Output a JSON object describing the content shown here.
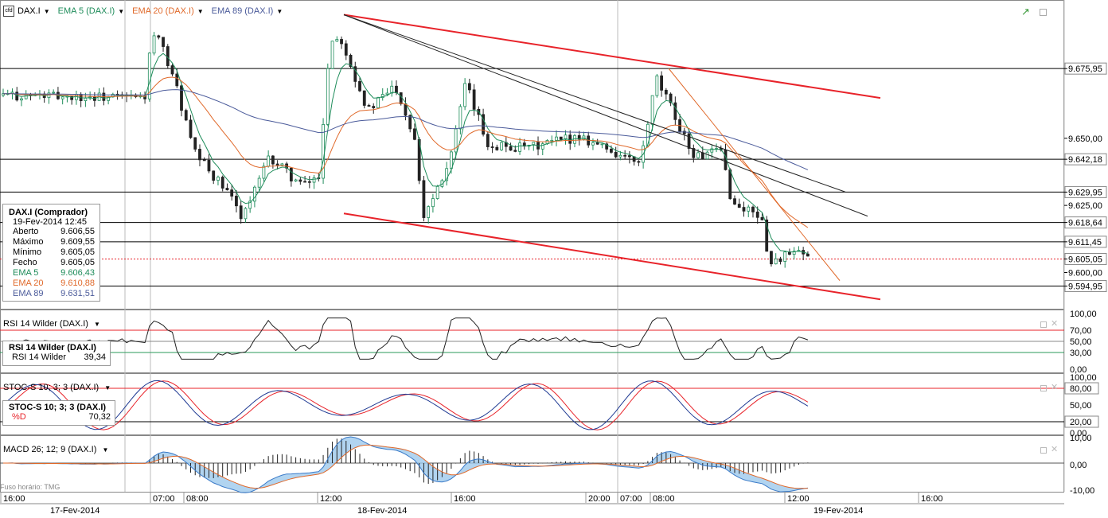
{
  "toolbar": {
    "instrument": "DAX.I",
    "indicators": [
      {
        "label": "EMA 5 (DAX.I)",
        "color": "#1e8c5a"
      },
      {
        "label": "EMA 20 (DAX.I)",
        "color": "#e0692a"
      },
      {
        "label": "EMA 89 (DAX.I)",
        "color": "#4a5a9a"
      }
    ]
  },
  "colors": {
    "candle_up": "#1e8c5a",
    "candle_down": "#222222",
    "channel": "#e8232a",
    "grid": "#cfcfcf",
    "axis_text": "#000000",
    "rsi_line": "#222222",
    "stoch_k": "#1f3a93",
    "stoch_d": "#e8232a",
    "macd_fill_up": "#9ec9ec",
    "macd_fill_dn": "#f3b58c"
  },
  "info_box": {
    "title": "DAX.I (Comprador)",
    "date": "19-Fev-2014 12:45",
    "rows": [
      {
        "label": "Aberto",
        "value": "9.606,55"
      },
      {
        "label": "Máximo",
        "value": "9.609,55"
      },
      {
        "label": "Mínimo",
        "value": "9.605,05"
      },
      {
        "label": "Fecho",
        "value": "9.605,05"
      },
      {
        "label": "EMA 5",
        "value": "9.606,43",
        "color": "#1e8c5a"
      },
      {
        "label": "EMA 20",
        "value": "9.610,88",
        "color": "#e0692a"
      },
      {
        "label": "EMA 89",
        "value": "9.631,51",
        "color": "#4a5a9a"
      }
    ]
  },
  "rsi_panel": {
    "header": "RSI 14 Wilder (DAX.I)",
    "box_title": "RSI 14 Wilder (DAX.I)",
    "box_label": "RSI 14 Wilder",
    "box_value": "39,34",
    "axis": [
      "100,00",
      "70,00",
      "50,00",
      "30,00",
      "0,00"
    ]
  },
  "stoch_panel": {
    "header": "STOC-S 10; 3; 3 (DAX.I)",
    "box_title": "STOC-S 10; 3; 3 (DAX.I)",
    "box_label": "%D",
    "box_value": "70,32",
    "axis": [
      "100,00",
      "80,00",
      "50,00",
      "20,00",
      "0,00"
    ]
  },
  "macd_panel": {
    "header": "MACD 26; 12; 9 (DAX.I)",
    "timezone": "Fuso horário: TMG",
    "axis": [
      "10,00",
      "0,00",
      "-10,00"
    ]
  },
  "time_axis": {
    "times": [
      "16:00",
      "07:00",
      "08:00",
      "12:00",
      "16:00",
      "20:00",
      "07:00",
      "08:00",
      "12:00",
      "16:00"
    ],
    "dates": [
      "17-Fev-2014",
      "18-Fev-2014",
      "19-Fev-2014"
    ]
  },
  "chart_data": {
    "type": "candlestick",
    "instrument": "DAX.I",
    "y_range": [
      9588,
      9700
    ],
    "price_labels": [
      "9.675,95",
      "9.650,00",
      "9.642,18",
      "9.629,95",
      "9.625,00",
      "9.618,64",
      "9.611,45",
      "9.605,05",
      "9.600,00",
      "9.594,95"
    ],
    "horizontal_levels": [
      9675.95,
      9642.18,
      9629.95,
      9618.64,
      9611.45,
      9594.95
    ],
    "current_price": 9605.05,
    "trendlines": [
      {
        "color": "red",
        "from": {
          "time": "18-Fev 12:00",
          "price": 9622
        },
        "to": {
          "time": "19-Fev 15:40",
          "price": 9590
        }
      },
      {
        "color": "red",
        "from": {
          "time": "18-Fev 12:00",
          "price": 9696
        },
        "to": {
          "time": "19-Fev 15:40",
          "price": 9665
        }
      },
      {
        "color": "black",
        "from": {
          "time": "18-Fev 12:00",
          "price": 9696
        },
        "to": {
          "time": "19-Fev 15:30",
          "price": 9621
        }
      },
      {
        "color": "black",
        "from": {
          "time": "18-Fev 12:00",
          "price": 9696
        },
        "to": {
          "time": "19-Fev 15:00",
          "price": 9630
        }
      },
      {
        "color": "orange",
        "from": {
          "time": "19-Fev 08:30",
          "price": 9676
        },
        "to": {
          "time": "19-Fev 14:00",
          "price": 9597
        }
      }
    ],
    "close_path": [
      {
        "t": 0,
        "p": 9666
      },
      {
        "t": 0.13,
        "p": 9665
      },
      {
        "t": 0.135,
        "p": 9683
      },
      {
        "t": 0.14,
        "p": 9689
      },
      {
        "t": 0.155,
        "p": 9675
      },
      {
        "t": 0.175,
        "p": 9645
      },
      {
        "t": 0.205,
        "p": 9630
      },
      {
        "t": 0.22,
        "p": 9621
      },
      {
        "t": 0.245,
        "p": 9643
      },
      {
        "t": 0.275,
        "p": 9632
      },
      {
        "t": 0.29,
        "p": 9636
      },
      {
        "t": 0.3,
        "p": 9686
      },
      {
        "t": 0.31,
        "p": 9688
      },
      {
        "t": 0.335,
        "p": 9660
      },
      {
        "t": 0.36,
        "p": 9670
      },
      {
        "t": 0.38,
        "p": 9648
      },
      {
        "t": 0.385,
        "p": 9620
      },
      {
        "t": 0.41,
        "p": 9642
      },
      {
        "t": 0.425,
        "p": 9670
      },
      {
        "t": 0.445,
        "p": 9648
      },
      {
        "t": 0.48,
        "p": 9646
      },
      {
        "t": 0.53,
        "p": 9651
      },
      {
        "t": 0.56,
        "p": 9645
      },
      {
        "t": 0.585,
        "p": 9640
      },
      {
        "t": 0.6,
        "p": 9672
      },
      {
        "t": 0.615,
        "p": 9660
      },
      {
        "t": 0.635,
        "p": 9643
      },
      {
        "t": 0.66,
        "p": 9645
      },
      {
        "t": 0.67,
        "p": 9625
      },
      {
        "t": 0.695,
        "p": 9622
      },
      {
        "t": 0.705,
        "p": 9603
      },
      {
        "t": 0.715,
        "p": 9606
      },
      {
        "t": 0.73,
        "p": 9607
      },
      {
        "t": 0.74,
        "p": 9605
      }
    ],
    "indicators": {
      "ema5_last": 9606.43,
      "ema20_last": 9610.88,
      "ema89_last": 9631.51,
      "rsi14_last": 39.34,
      "stoch_d_last": 70.32
    }
  }
}
